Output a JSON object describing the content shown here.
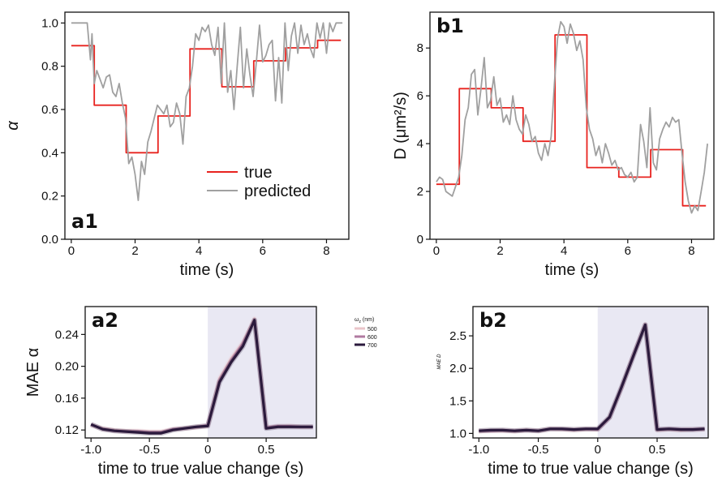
{
  "chart_data": [
    {
      "id": "a1",
      "type": "line",
      "panel_label": "a1",
      "xlabel": "time (s)",
      "ylabel": "α",
      "xlim": [
        -0.2,
        8.7
      ],
      "ylim": [
        0.0,
        1.05
      ],
      "xticks": [
        "0",
        "2",
        "4",
        "6",
        "8"
      ],
      "xtick_values": [
        0,
        2,
        4,
        6,
        8
      ],
      "yticks": [
        "0.0",
        "0.2",
        "0.4",
        "0.6",
        "0.8",
        "1.0"
      ],
      "ytick_values": [
        0.0,
        0.2,
        0.4,
        0.6,
        0.8,
        1.0
      ],
      "legend_position": "lower-right",
      "series": [
        {
          "name": "true",
          "color": "#e8231f",
          "step": true,
          "x": [
            0.0,
            0.72,
            0.72,
            1.72,
            1.72,
            2.72,
            2.72,
            3.72,
            3.72,
            4.72,
            4.72,
            5.72,
            5.72,
            6.72,
            6.72,
            7.72,
            7.72,
            8.45
          ],
          "y": [
            0.895,
            0.895,
            0.62,
            0.62,
            0.4,
            0.4,
            0.57,
            0.57,
            0.88,
            0.88,
            0.705,
            0.705,
            0.825,
            0.825,
            0.885,
            0.885,
            0.92,
            0.92
          ]
        },
        {
          "name": "predicted",
          "color": "#a0a0a0",
          "step": false,
          "x": [
            0.0,
            0.3,
            0.5,
            0.6,
            0.65,
            0.72,
            0.8,
            0.9,
            1.0,
            1.1,
            1.2,
            1.3,
            1.4,
            1.5,
            1.6,
            1.7,
            1.8,
            1.9,
            2.0,
            2.1,
            2.2,
            2.3,
            2.4,
            2.5,
            2.6,
            2.7,
            2.8,
            2.9,
            3.0,
            3.1,
            3.2,
            3.3,
            3.4,
            3.5,
            3.6,
            3.7,
            3.8,
            3.9,
            4.0,
            4.1,
            4.2,
            4.3,
            4.4,
            4.5,
            4.6,
            4.7,
            4.8,
            4.9,
            5.0,
            5.1,
            5.2,
            5.3,
            5.4,
            5.5,
            5.6,
            5.7,
            5.8,
            5.9,
            6.0,
            6.1,
            6.2,
            6.3,
            6.4,
            6.5,
            6.6,
            6.7,
            6.8,
            6.9,
            7.0,
            7.1,
            7.2,
            7.3,
            7.4,
            7.5,
            7.6,
            7.7,
            7.8,
            7.9,
            8.0,
            8.1,
            8.2,
            8.3,
            8.4,
            8.5
          ],
          "y": [
            1.0,
            1.0,
            1.0,
            0.83,
            0.95,
            0.72,
            0.78,
            0.74,
            0.7,
            0.75,
            0.76,
            0.68,
            0.66,
            0.72,
            0.63,
            0.56,
            0.35,
            0.38,
            0.3,
            0.18,
            0.36,
            0.3,
            0.45,
            0.5,
            0.56,
            0.62,
            0.6,
            0.58,
            0.62,
            0.52,
            0.54,
            0.63,
            0.58,
            0.44,
            0.66,
            0.7,
            0.8,
            0.95,
            0.92,
            0.98,
            0.96,
            0.99,
            0.9,
            0.85,
            0.98,
            0.72,
            1.0,
            0.68,
            0.78,
            0.6,
            0.8,
            0.98,
            0.7,
            0.88,
            0.76,
            0.66,
            0.82,
            0.99,
            0.82,
            0.85,
            0.9,
            0.92,
            0.64,
            0.84,
            0.63,
            1.0,
            0.78,
            0.94,
            1.0,
            0.86,
            0.99,
            0.9,
            0.95,
            0.88,
            0.84,
            1.0,
            0.93,
            1.0,
            0.86,
            1.0,
            0.96,
            1.0,
            1.0,
            1.0
          ]
        }
      ]
    },
    {
      "id": "b1",
      "type": "line",
      "panel_label": "b1",
      "xlabel": "time (s)",
      "ylabel": "D (μm²/s)",
      "xlim": [
        -0.2,
        8.7
      ],
      "ylim": [
        0,
        9.5
      ],
      "xticks": [
        "0",
        "2",
        "4",
        "6",
        "8"
      ],
      "xtick_values": [
        0,
        2,
        4,
        6,
        8
      ],
      "yticks": [
        "0",
        "2",
        "4",
        "6",
        "8"
      ],
      "ytick_values": [
        0,
        2,
        4,
        6,
        8
      ],
      "series": [
        {
          "name": "true",
          "color": "#e8231f",
          "step": true,
          "x": [
            0.0,
            0.72,
            0.72,
            1.72,
            1.72,
            2.72,
            2.72,
            3.72,
            3.72,
            4.72,
            4.72,
            5.72,
            5.72,
            6.72,
            6.72,
            7.72,
            7.72,
            8.45
          ],
          "y": [
            2.3,
            2.3,
            6.3,
            6.3,
            5.5,
            5.5,
            4.1,
            4.1,
            8.55,
            8.55,
            3.0,
            3.0,
            2.6,
            2.6,
            3.75,
            3.75,
            1.4,
            1.4
          ]
        },
        {
          "name": "predicted",
          "color": "#a0a0a0",
          "step": false,
          "x": [
            0.0,
            0.1,
            0.2,
            0.3,
            0.4,
            0.5,
            0.6,
            0.7,
            0.8,
            0.9,
            1.0,
            1.1,
            1.2,
            1.3,
            1.4,
            1.5,
            1.6,
            1.7,
            1.8,
            1.9,
            2.0,
            2.1,
            2.2,
            2.3,
            2.4,
            2.5,
            2.6,
            2.7,
            2.8,
            2.9,
            3.0,
            3.1,
            3.2,
            3.3,
            3.4,
            3.5,
            3.6,
            3.7,
            3.8,
            3.9,
            4.0,
            4.1,
            4.2,
            4.3,
            4.4,
            4.5,
            4.6,
            4.7,
            4.8,
            4.9,
            5.0,
            5.1,
            5.2,
            5.3,
            5.4,
            5.5,
            5.6,
            5.7,
            5.8,
            5.9,
            6.0,
            6.1,
            6.2,
            6.3,
            6.4,
            6.5,
            6.6,
            6.7,
            6.8,
            6.9,
            7.0,
            7.1,
            7.2,
            7.3,
            7.4,
            7.5,
            7.6,
            7.7,
            7.8,
            7.9,
            8.0,
            8.1,
            8.2,
            8.3,
            8.4,
            8.5
          ],
          "y": [
            2.4,
            2.6,
            2.5,
            2.0,
            1.9,
            1.8,
            2.2,
            2.6,
            3.5,
            5.0,
            5.5,
            6.9,
            7.1,
            5.2,
            6.3,
            7.6,
            5.5,
            5.8,
            6.8,
            5.6,
            5.9,
            4.9,
            5.2,
            4.8,
            6.0,
            5.0,
            4.6,
            4.4,
            5.2,
            4.8,
            4.1,
            4.3,
            3.6,
            3.3,
            4.0,
            3.5,
            4.3,
            6.5,
            8.4,
            9.1,
            8.9,
            8.2,
            9.0,
            8.6,
            7.9,
            8.3,
            7.5,
            5.5,
            4.6,
            4.2,
            3.5,
            3.9,
            3.2,
            4.0,
            3.6,
            3.1,
            3.3,
            2.9,
            3.0,
            2.7,
            2.6,
            2.8,
            2.4,
            2.6,
            4.8,
            4.1,
            3.0,
            5.5,
            3.2,
            2.9,
            4.2,
            4.6,
            4.9,
            4.7,
            5.1,
            4.9,
            5.0,
            3.6,
            2.4,
            1.6,
            1.1,
            1.4,
            1.2,
            2.0,
            2.8,
            4.0
          ]
        }
      ]
    },
    {
      "id": "a2",
      "type": "line",
      "panel_label": "a2",
      "xlabel": "time to true value change (s)",
      "ylabel": "MAE  α",
      "xlim": [
        -1.05,
        0.93
      ],
      "ylim": [
        0.11,
        0.275
      ],
      "shaded_region": [
        0.0,
        0.93
      ],
      "xticks": [
        "-1.0",
        "-0.5",
        "0",
        "0.5"
      ],
      "xtick_values": [
        -1.0,
        -0.5,
        0.0,
        0.5
      ],
      "yticks": [
        "0.12",
        "0.16",
        "0.20",
        "0.24"
      ],
      "ytick_values": [
        0.12,
        0.16,
        0.2,
        0.24
      ],
      "legend_title": "ω",
      "legend_title_sub": "z",
      "legend_title_suffix": " (nm)",
      "series": [
        {
          "name": "500",
          "color": "#eac4c9",
          "x": [
            -1.0,
            -0.9,
            -0.8,
            -0.7,
            -0.6,
            -0.5,
            -0.4,
            -0.3,
            -0.2,
            -0.1,
            0.0,
            0.1,
            0.2,
            0.3,
            0.4,
            0.5,
            0.6,
            0.7,
            0.8,
            0.9
          ],
          "y": [
            0.126,
            0.122,
            0.12,
            0.119,
            0.119,
            0.118,
            0.118,
            0.121,
            0.122,
            0.123,
            0.125,
            0.185,
            0.21,
            0.23,
            0.26,
            0.123,
            0.124,
            0.125,
            0.124,
            0.124
          ]
        },
        {
          "name": "600",
          "color": "#b07aa1",
          "x": [
            -1.0,
            -0.9,
            -0.8,
            -0.7,
            -0.6,
            -0.5,
            -0.4,
            -0.3,
            -0.2,
            -0.1,
            0.0,
            0.1,
            0.2,
            0.3,
            0.4,
            0.5,
            0.6,
            0.7,
            0.8,
            0.9
          ],
          "y": [
            0.127,
            0.121,
            0.119,
            0.118,
            0.118,
            0.117,
            0.117,
            0.121,
            0.122,
            0.124,
            0.126,
            0.182,
            0.207,
            0.228,
            0.258,
            0.123,
            0.125,
            0.125,
            0.124,
            0.124
          ]
        },
        {
          "name": "700",
          "color": "#2b1a3c",
          "x": [
            -1.0,
            -0.9,
            -0.8,
            -0.7,
            -0.6,
            -0.5,
            -0.4,
            -0.3,
            -0.2,
            -0.1,
            0.0,
            0.1,
            0.2,
            0.3,
            0.4,
            0.5,
            0.6,
            0.7,
            0.8,
            0.9
          ],
          "y": [
            0.127,
            0.121,
            0.119,
            0.118,
            0.117,
            0.116,
            0.116,
            0.12,
            0.122,
            0.124,
            0.125,
            0.18,
            0.205,
            0.225,
            0.258,
            0.122,
            0.124,
            0.124,
            0.124,
            0.124
          ]
        }
      ]
    },
    {
      "id": "b2",
      "type": "line",
      "panel_label": "b2",
      "xlabel": "time to true value change (s)",
      "ylabel": "MAE D",
      "xlim": [
        -1.05,
        0.93
      ],
      "ylim": [
        0.93,
        2.95
      ],
      "shaded_region": [
        0.0,
        0.93
      ],
      "xticks": [
        "-1.0",
        "-0.5",
        "0",
        "0.5"
      ],
      "xtick_values": [
        -1.0,
        -0.5,
        0.0,
        0.5
      ],
      "yticks": [
        "1.0",
        "1.5",
        "2.0",
        "2.5"
      ],
      "ytick_values": [
        1.0,
        1.5,
        2.0,
        2.5
      ],
      "series": [
        {
          "name": "500",
          "color": "#eac4c9",
          "x": [
            -1.0,
            -0.9,
            -0.8,
            -0.7,
            -0.6,
            -0.5,
            -0.4,
            -0.3,
            -0.2,
            -0.1,
            0.0,
            0.1,
            0.2,
            0.3,
            0.4,
            0.5,
            0.6,
            0.7,
            0.8,
            0.9
          ],
          "y": [
            1.03,
            1.04,
            1.04,
            1.03,
            1.05,
            1.04,
            1.07,
            1.06,
            1.05,
            1.06,
            1.06,
            1.25,
            1.7,
            2.2,
            2.68,
            1.05,
            1.06,
            1.05,
            1.06,
            1.06
          ]
        },
        {
          "name": "600",
          "color": "#b07aa1",
          "x": [
            -1.0,
            -0.9,
            -0.8,
            -0.7,
            -0.6,
            -0.5,
            -0.4,
            -0.3,
            -0.2,
            -0.1,
            0.0,
            0.1,
            0.2,
            0.3,
            0.4,
            0.5,
            0.6,
            0.7,
            0.8,
            0.9
          ],
          "y": [
            1.04,
            1.04,
            1.05,
            1.04,
            1.05,
            1.04,
            1.07,
            1.07,
            1.06,
            1.07,
            1.06,
            1.24,
            1.7,
            2.2,
            2.67,
            1.06,
            1.07,
            1.06,
            1.06,
            1.07
          ]
        },
        {
          "name": "700",
          "color": "#2b1a3c",
          "x": [
            -1.0,
            -0.9,
            -0.8,
            -0.7,
            -0.6,
            -0.5,
            -0.4,
            -0.3,
            -0.2,
            -0.1,
            0.0,
            0.1,
            0.2,
            0.3,
            0.4,
            0.5,
            0.6,
            0.7,
            0.8,
            0.9
          ],
          "y": [
            1.04,
            1.05,
            1.05,
            1.04,
            1.05,
            1.04,
            1.07,
            1.07,
            1.06,
            1.07,
            1.07,
            1.25,
            1.71,
            2.19,
            2.67,
            1.06,
            1.07,
            1.06,
            1.06,
            1.07
          ]
        }
      ]
    }
  ]
}
